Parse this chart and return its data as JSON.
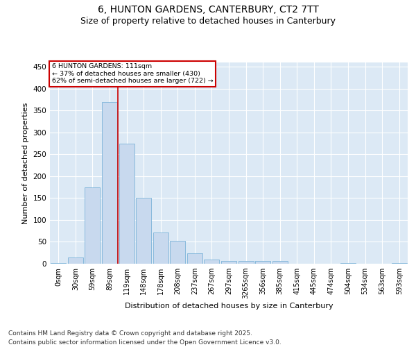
{
  "title_line1": "6, HUNTON GARDENS, CANTERBURY, CT2 7TT",
  "title_line2": "Size of property relative to detached houses in Canterbury",
  "xlabel": "Distribution of detached houses by size in Canterbury",
  "ylabel": "Number of detached properties",
  "bar_color": "#c8d9ee",
  "bar_edge_color": "#6aaad4",
  "background_color": "#dce9f5",
  "grid_color": "#ffffff",
  "categories": [
    "0sqm",
    "30sqm",
    "59sqm",
    "89sqm",
    "119sqm",
    "148sqm",
    "178sqm",
    "208sqm",
    "237sqm",
    "267sqm",
    "297sqm",
    "3265sqm",
    "356sqm",
    "385sqm",
    "415sqm",
    "445sqm",
    "474sqm",
    "504sqm",
    "534sqm",
    "563sqm",
    "593sqm"
  ],
  "values": [
    2,
    15,
    175,
    370,
    275,
    150,
    72,
    53,
    24,
    10,
    7,
    6,
    7,
    7,
    0,
    0,
    0,
    1,
    0,
    0,
    1
  ],
  "ylim": [
    0,
    460
  ],
  "yticks": [
    0,
    50,
    100,
    150,
    200,
    250,
    300,
    350,
    400,
    450
  ],
  "annotation_text": "6 HUNTON GARDENS: 111sqm\n← 37% of detached houses are smaller (430)\n62% of semi-detached houses are larger (722) →",
  "annotation_box_color": "#ffffff",
  "annotation_box_edge": "#cc0000",
  "property_line_color": "#cc0000",
  "footnote_line1": "Contains HM Land Registry data © Crown copyright and database right 2025.",
  "footnote_line2": "Contains public sector information licensed under the Open Government Licence v3.0.",
  "tick_label_fontsize": 7,
  "title1_fontsize": 10,
  "title2_fontsize": 9,
  "ylabel_fontsize": 8,
  "xlabel_fontsize": 8,
  "footnote_fontsize": 6.5
}
